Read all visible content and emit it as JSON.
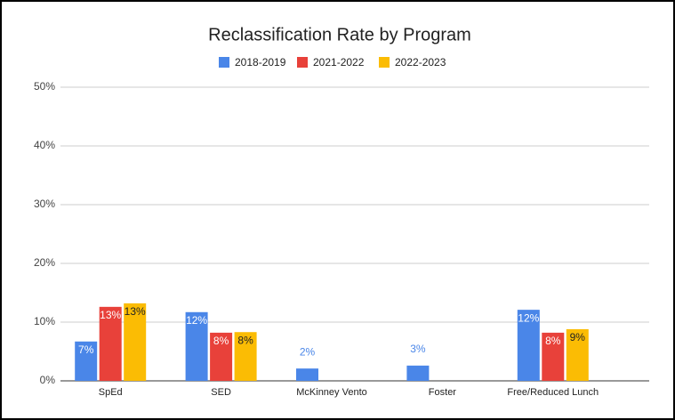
{
  "chart_data": {
    "type": "bar",
    "title": "Reclassification Rate by Program",
    "categories": [
      "SpEd",
      "SED",
      "McKinney Vento",
      "Foster",
      "Free/Reduced Lunch"
    ],
    "series": [
      {
        "name": "2018-2019",
        "color": "#4a86e8",
        "values": [
          6.7,
          11.7,
          2.1,
          2.6,
          12.1
        ],
        "value_labels": [
          "7%",
          "12%",
          "2%",
          "3%",
          "12%"
        ]
      },
      {
        "name": "2021-2022",
        "color": "#e8413a",
        "values": [
          12.6,
          8.2,
          null,
          null,
          8.2
        ],
        "value_labels": [
          "13%",
          "8%",
          null,
          null,
          "8%"
        ]
      },
      {
        "name": "2022-2023",
        "color": "#fbbc04",
        "values": [
          13.2,
          8.3,
          null,
          null,
          8.8
        ],
        "value_labels": [
          "13%",
          "8%",
          null,
          null,
          "9%"
        ]
      }
    ],
    "ylim": [
      0,
      50
    ],
    "yticks": [
      {
        "value": 0,
        "label": "0%"
      },
      {
        "value": 10,
        "label": "10%"
      },
      {
        "value": 20,
        "label": "20%"
      },
      {
        "value": 30,
        "label": "30%"
      },
      {
        "value": 40,
        "label": "40%"
      },
      {
        "value": 50,
        "label": "50%"
      }
    ],
    "grid": true,
    "legend": "top"
  }
}
